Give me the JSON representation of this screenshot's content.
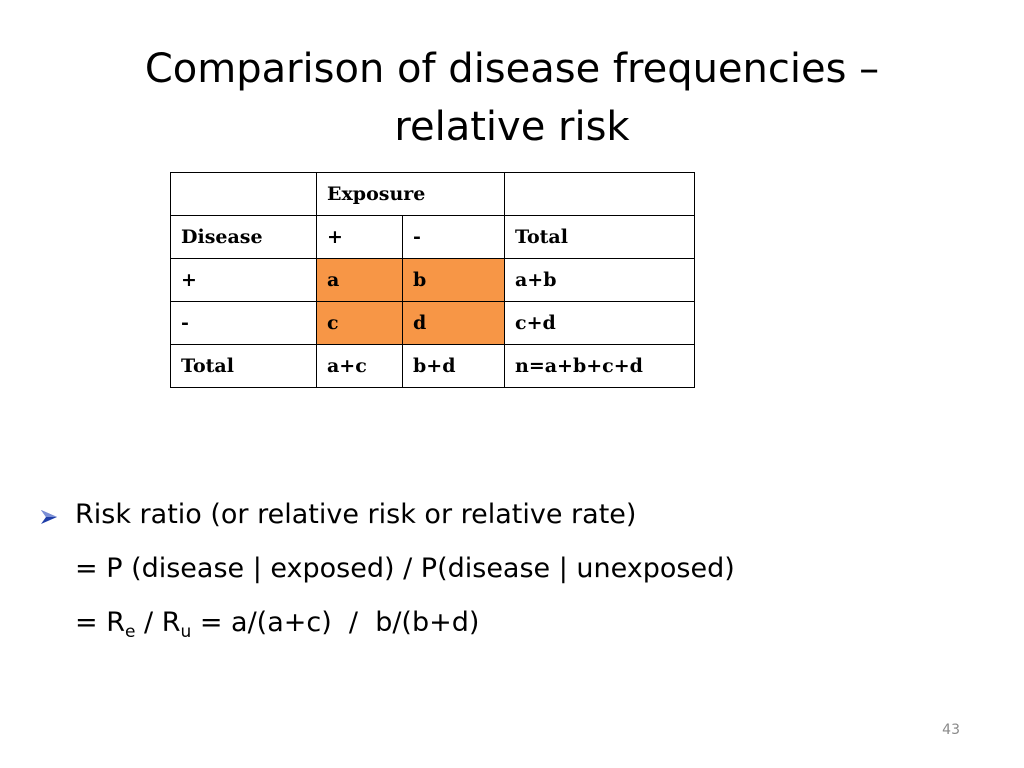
{
  "slide": {
    "title_line1": "Comparison of disease frequencies –",
    "title_line2": "relative risk",
    "page_number": "43"
  },
  "table": {
    "rows": [
      [
        "",
        "Exposure",
        "",
        ""
      ],
      [
        "Disease",
        "+",
        "-",
        "Total"
      ],
      [
        "+",
        "a",
        "b",
        "a+b"
      ],
      [
        "-",
        "c",
        "d",
        "c+d"
      ],
      [
        "Total",
        "a+c",
        "b+d",
        "n=a+b+c+d"
      ]
    ],
    "highlight_color": "#f79646"
  },
  "bullets": {
    "marker_icon": "arrow-bullet-icon",
    "marker_color": "#1f3ea8",
    "line1": "Risk ratio (or relative risk or relative rate)",
    "line2": "= P (disease | exposed) / P(disease | unexposed)",
    "line3_prefix": "= R",
    "line3_sub1": "e",
    "line3_mid": " / R",
    "line3_sub2": "u",
    "line3_suffix": " = a/(a+c)  /  b/(b+d)"
  }
}
